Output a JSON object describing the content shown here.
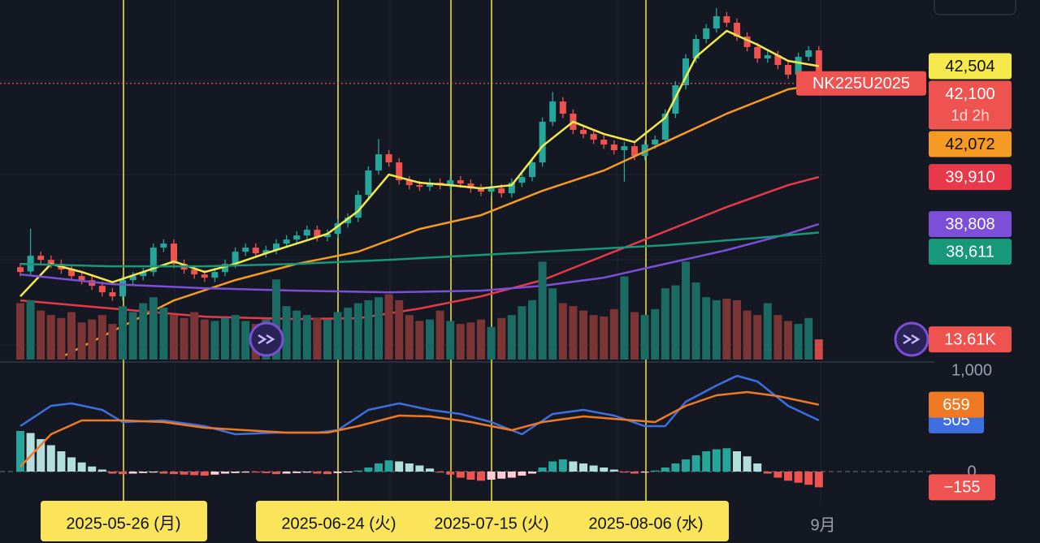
{
  "chart_data": [
    {
      "type": "candlestick",
      "symbol": "NK225U2025",
      "close_label": "42,100",
      "countdown": "1d 2h",
      "ylim": [
        35600,
        44052
      ],
      "up_color": "#26a69a",
      "down_color": "#ef5350",
      "open": [
        37800,
        37700,
        38067,
        37972,
        37877,
        37744,
        37592,
        37497,
        37364,
        37212,
        37117,
        37497,
        37592,
        37687,
        38257,
        38352,
        37877,
        37744,
        37630,
        37554,
        37687,
        37877,
        38162,
        38257,
        38124,
        38200,
        38352,
        38447,
        38542,
        38675,
        38504,
        38580,
        38827,
        38960,
        39492,
        40062,
        40442,
        40252,
        39834,
        39720,
        39682,
        39777,
        39720,
        39834,
        39758,
        39644,
        39568,
        39644,
        39530,
        39777,
        39910,
        40252,
        41202,
        41677,
        41392,
        41012,
        40917,
        40784,
        40670,
        40537,
        40632,
        40404,
        40670,
        40784,
        41392,
        42057,
        42684,
        43140,
        43387,
        43672,
        43520,
        43197,
        42950,
        42684,
        42760,
        42532,
        42304,
        42722,
        42874
      ],
      "high": [
        37900,
        38700,
        38167,
        38072,
        37977,
        37844,
        37692,
        37597,
        37464,
        37312,
        37597,
        37692,
        37787,
        38357,
        38452,
        38452,
        37977,
        37844,
        37730,
        37787,
        37977,
        38262,
        38357,
        38357,
        38300,
        38452,
        38547,
        38642,
        38775,
        38775,
        38680,
        38927,
        39060,
        39592,
        40162,
        40800,
        40542,
        40352,
        39934,
        39820,
        39877,
        39877,
        39934,
        39934,
        39858,
        39744,
        39744,
        39744,
        39877,
        40010,
        40352,
        41302,
        41900,
        41777,
        41492,
        41112,
        41017,
        40884,
        40770,
        40732,
        40732,
        40770,
        40884,
        41492,
        42157,
        42784,
        43240,
        43487,
        43860,
        43772,
        43620,
        43297,
        43050,
        42860,
        42860,
        42632,
        42822,
        42974,
        42974
      ],
      "low": [
        37587,
        37600,
        37872,
        37777,
        37644,
        37492,
        37397,
        37264,
        37112,
        37017,
        37017,
        37397,
        37492,
        37587,
        38157,
        37777,
        37644,
        37530,
        37454,
        37454,
        37587,
        37777,
        38062,
        38024,
        38024,
        38100,
        38252,
        38347,
        38442,
        38404,
        38404,
        38480,
        38727,
        38860,
        39392,
        39962,
        40152,
        39734,
        39620,
        39582,
        39582,
        39620,
        39620,
        39658,
        39544,
        39468,
        39468,
        39430,
        39430,
        39677,
        39810,
        40152,
        41102,
        41292,
        40912,
        40817,
        40684,
        40570,
        40437,
        39800,
        40304,
        40304,
        40570,
        40684,
        41292,
        41957,
        42584,
        43040,
        43287,
        43420,
        43097,
        42850,
        42584,
        42584,
        42432,
        42204,
        42204,
        42622,
        42000
      ],
      "close": [
        37687,
        38067,
        37972,
        37877,
        37744,
        37592,
        37497,
        37364,
        37212,
        37117,
        37497,
        37592,
        37687,
        38257,
        38352,
        37877,
        37744,
        37630,
        37554,
        37687,
        37877,
        38162,
        38257,
        38124,
        38200,
        38352,
        38447,
        38542,
        38675,
        38504,
        38580,
        38827,
        38960,
        39492,
        40062,
        40442,
        40252,
        39834,
        39720,
        39682,
        39777,
        39720,
        39834,
        39758,
        39644,
        39568,
        39644,
        39530,
        39777,
        39910,
        40252,
        41202,
        41677,
        41392,
        41012,
        40917,
        40784,
        40670,
        40537,
        40632,
        40404,
        40670,
        40784,
        41392,
        42057,
        42684,
        43140,
        43387,
        43672,
        43520,
        43197,
        42950,
        42684,
        42760,
        42532,
        42304,
        42722,
        42874,
        42100
      ],
      "series": [
        {
          "color": "#f5e94b",
          "value_label": "42,504",
          "x": [
            0,
            3,
            6,
            9,
            12,
            15,
            18,
            21,
            24,
            27,
            30,
            33,
            36,
            39,
            42,
            45,
            48,
            51,
            54,
            57,
            60,
            63,
            66,
            69,
            72,
            75,
            78
          ],
          "values": [
            37117,
            37877,
            37687,
            37449,
            37687,
            37934,
            37687,
            37877,
            38124,
            38352,
            38580,
            39112,
            39967,
            39777,
            39720,
            39644,
            39720,
            40632,
            41202,
            40917,
            40727,
            41297,
            42722,
            43330,
            43007,
            42627,
            42504
          ]
        },
        {
          "color": "#f59a23",
          "value_label": "42,072",
          "x": [
            4,
            9,
            15,
            21,
            27,
            33,
            39,
            45,
            51,
            57,
            63,
            69,
            75,
            78
          ],
          "values": [
            35692,
            36300,
            37022,
            37497,
            37877,
            38162,
            38694,
            39017,
            39587,
            40062,
            40727,
            41392,
            41962,
            42072
          ]
        },
        {
          "color": "#e8394a",
          "value_label": "39,910",
          "x": [
            0,
            9,
            18,
            27,
            33,
            39,
            45,
            51,
            57,
            63,
            69,
            75,
            78
          ],
          "values": [
            37022,
            36832,
            36642,
            36585,
            36604,
            36832,
            37117,
            37497,
            38067,
            38637,
            39207,
            39720,
            39910
          ]
        },
        {
          "color": "#7b4fd8",
          "value_label": "38,808",
          "x": [
            0,
            9,
            18,
            27,
            36,
            45,
            51,
            57,
            63,
            69,
            75,
            78
          ],
          "values": [
            37630,
            37402,
            37307,
            37250,
            37212,
            37250,
            37364,
            37554,
            37877,
            38200,
            38580,
            38808
          ]
        },
        {
          "color": "#17987a",
          "value_label": "38,611",
          "x": [
            0,
            9,
            18,
            27,
            36,
            45,
            54,
            63,
            72,
            78
          ],
          "values": [
            37877,
            37820,
            37820,
            37877,
            37972,
            38086,
            38200,
            38314,
            38485,
            38611
          ]
        }
      ]
    },
    {
      "type": "bar",
      "ylim": [
        0,
        70000
      ],
      "up_color": "#1b6b64",
      "down_color": "#7c3535",
      "last_color": "#ef5350",
      "last_label": "13.61K",
      "values": [
        38000,
        40000,
        33000,
        30000,
        28000,
        32000,
        25000,
        27000,
        30000,
        24000,
        36000,
        32000,
        38000,
        42000,
        35000,
        30000,
        28000,
        32000,
        27000,
        26000,
        28000,
        30000,
        26000,
        24000,
        27000,
        54000,
        36000,
        33000,
        30000,
        28000,
        27000,
        32000,
        35000,
        38000,
        40000,
        42000,
        44000,
        40000,
        30000,
        26000,
        27000,
        33000,
        26000,
        24000,
        25000,
        27000,
        22000,
        28000,
        30000,
        36000,
        40000,
        66000,
        48000,
        38000,
        36000,
        33000,
        30000,
        29000,
        34000,
        56000,
        32000,
        30000,
        34000,
        48000,
        50000,
        66000,
        52000,
        42000,
        40000,
        41000,
        40000,
        33000,
        30000,
        38000,
        30000,
        26000,
        24000,
        28000,
        13610
      ]
    },
    {
      "type": "macd",
      "ylim": [
        -312,
        1000
      ],
      "yticks": [
        {
          "value": 1000,
          "label": "1,000"
        },
        0
      ],
      "last_label": "−155",
      "histogram": [
        400,
        380,
        320,
        260,
        200,
        140,
        90,
        50,
        20,
        -20,
        -25,
        -20,
        -15,
        -10,
        -20,
        -25,
        -30,
        -35,
        -40,
        -30,
        -20,
        -15,
        -10,
        -10,
        -15,
        -25,
        -20,
        -15,
        -10,
        -20,
        -25,
        -15,
        -5,
        10,
        40,
        80,
        110,
        100,
        80,
        60,
        30,
        -10,
        -30,
        -60,
        -80,
        -90,
        -80,
        -70,
        -60,
        -40,
        -20,
        40,
        100,
        120,
        100,
        80,
        60,
        40,
        20,
        -10,
        -20,
        -10,
        10,
        40,
        80,
        120,
        160,
        200,
        220,
        230,
        200,
        150,
        80,
        -20,
        -60,
        -90,
        -110,
        -130,
        -155
      ],
      "series": [
        {
          "color": "#3d6fe0",
          "value_label": "505",
          "x": [
            0,
            3,
            5,
            8,
            10,
            14,
            18,
            21,
            25,
            29,
            31,
            34,
            37,
            40,
            43,
            46,
            49,
            52,
            55,
            58,
            61,
            63,
            65,
            68,
            70,
            72,
            75,
            78
          ],
          "values": [
            448,
            648,
            672,
            608,
            488,
            504,
            448,
            368,
            384,
            384,
            408,
            608,
            672,
            608,
            568,
            488,
            368,
            568,
            608,
            552,
            448,
            448,
            688,
            848,
            944,
            888,
            648,
            505
          ]
        },
        {
          "color": "#f07a24",
          "value_label": "659",
          "x": [
            0,
            3,
            6,
            10,
            14,
            18,
            22,
            26,
            30,
            33,
            37,
            40,
            44,
            48,
            51,
            55,
            59,
            62,
            65,
            68,
            71,
            74,
            78
          ],
          "values": [
            48,
            368,
            504,
            504,
            488,
            432,
            408,
            384,
            384,
            448,
            552,
            544,
            488,
            408,
            488,
            544,
            512,
            488,
            648,
            752,
            784,
            744,
            659
          ]
        }
      ]
    }
  ],
  "x_labels": [
    "2025-05-26 (月)",
    "2025-06-24 (火)",
    "2025-07-15 (火)",
    "2025-08-06 (水)",
    "9月"
  ]
}
